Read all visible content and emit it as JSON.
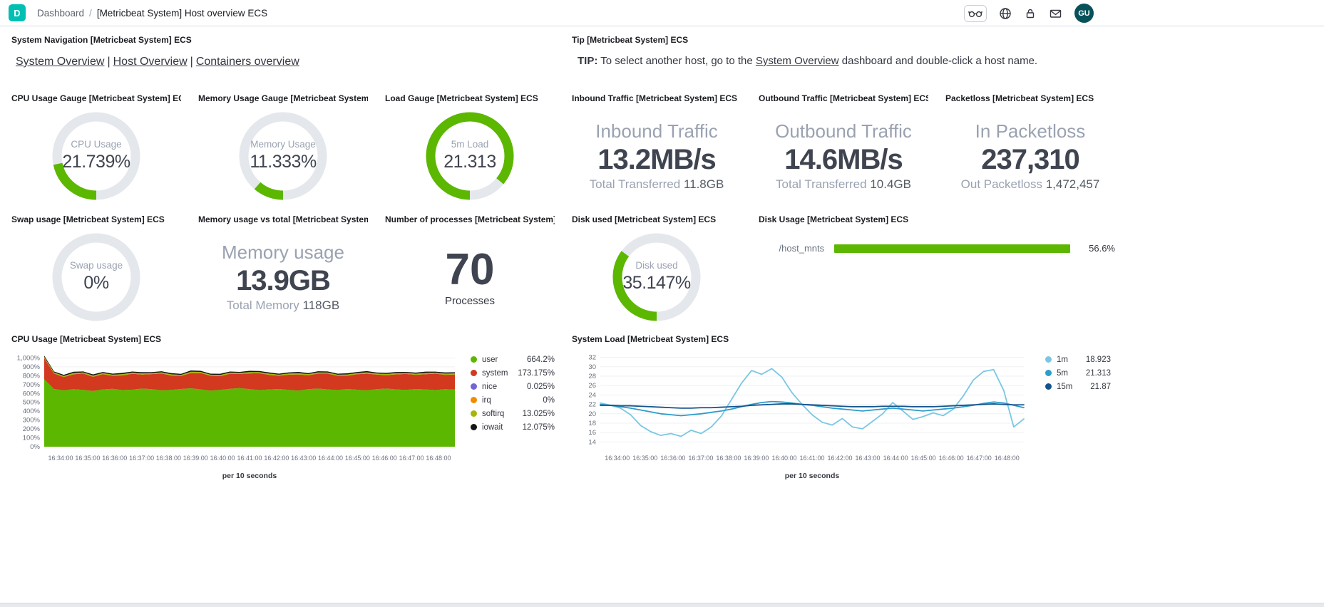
{
  "header": {
    "logo_letter": "D",
    "breadcrumbs": {
      "root": "Dashboard",
      "separator": "/",
      "current": "[Metricbeat System] Host overview ECS"
    },
    "avatar_initials": "GU"
  },
  "panels": {
    "system_navigation": {
      "title": "System Navigation [Metricbeat System] ECS",
      "separator": "|",
      "links": [
        "System Overview",
        "Host Overview",
        "Containers overview"
      ]
    },
    "tip": {
      "title": "Tip [Metricbeat System] ECS",
      "label": "TIP:",
      "text_before": " To select another host, go to the ",
      "link": "System Overview",
      "text_after": " dashboard and double-click a host name."
    },
    "cpu_gauge": {
      "title": "CPU Usage Gauge [Metricbeat System] ECS",
      "label": "CPU Usage",
      "value": "21.739%",
      "percent": 21.739,
      "color": "#5CB700"
    },
    "memory_gauge": {
      "title": "Memory Usage Gauge [Metricbeat System] ...",
      "label": "Memory Usage",
      "value": "11.333%",
      "percent": 11.333,
      "color": "#5CB700"
    },
    "load_gauge": {
      "title": "Load Gauge [Metricbeat System] ECS",
      "label": "5m Load",
      "value": "21.313",
      "percent": 86,
      "color": "#5CB700"
    },
    "inbound_traffic": {
      "title": "Inbound Traffic [Metricbeat System] ECS",
      "label": "Inbound Traffic",
      "value": "13.2MB/s",
      "sub_label": "Total Transferred ",
      "sub_value": "11.8GB"
    },
    "outbound_traffic": {
      "title": "Outbound Traffic [Metricbeat System] ECS",
      "label": "Outbound Traffic",
      "value": "14.6MB/s",
      "sub_label": "Total Transferred ",
      "sub_value": "10.4GB"
    },
    "packetloss": {
      "title": "Packetloss [Metricbeat System] ECS",
      "label": "In Packetloss",
      "value": "237,310",
      "sub_label": "Out Packetloss ",
      "sub_value": "1,472,457"
    },
    "swap_gauge": {
      "title": "Swap usage [Metricbeat System] ECS",
      "label": "Swap usage",
      "value": "0%",
      "percent": 0,
      "color": "#5CB700"
    },
    "memory_vs_total": {
      "title": "Memory usage vs total [Metricbeat System] ...",
      "label": "Memory usage",
      "value": "13.9GB",
      "sub_label": "Total Memory ",
      "sub_value": "118GB"
    },
    "processes": {
      "title": "Number of processes [Metricbeat System] E...",
      "value": "70",
      "label": "Processes"
    },
    "disk_used_gauge": {
      "title": "Disk used [Metricbeat System] ECS",
      "label": "Disk used",
      "value": "35.147%",
      "percent": 35.147,
      "color": "#5CB700"
    },
    "disk_usage_bar": {
      "title": "Disk Usage [Metricbeat System] ECS",
      "item_label": "/host_mnts",
      "value": "56.6%",
      "percent": 100,
      "color": "#5CB700"
    },
    "cpu_chart": {
      "title": "CPU Usage [Metricbeat System] ECS"
    },
    "load_chart": {
      "title": "System Load [Metricbeat System] ECS"
    }
  },
  "chart_data": [
    {
      "id": "cpu_usage",
      "type": "area",
      "stacked": true,
      "title": "CPU Usage [Metricbeat System] ECS",
      "x_caption": "per 10 seconds",
      "ylim": [
        0,
        1060
      ],
      "y_tick_values": [
        0,
        100,
        200,
        300,
        400,
        500,
        600,
        700,
        800,
        900,
        1000
      ],
      "y_ticks": [
        "0%",
        "100%",
        "200%",
        "300%",
        "400%",
        "500%",
        "600%",
        "700%",
        "800%",
        "900%",
        "1,000%"
      ],
      "x_labels": [
        "16:34:00",
        "16:35:00",
        "16:36:00",
        "16:37:00",
        "16:38:00",
        "16:39:00",
        "16:40:00",
        "16:41:00",
        "16:42:00",
        "16:43:00",
        "16:44:00",
        "16:45:00",
        "16:46:00",
        "16:47:00",
        "16:48:00"
      ],
      "legend_position": "right",
      "grid": true,
      "series": [
        {
          "name": "user",
          "color": "#5CB700",
          "legend_value": "664.2%",
          "values": [
            760,
            650,
            635,
            648,
            640,
            628,
            645,
            652,
            638,
            642,
            655,
            648,
            635,
            640,
            650,
            658,
            645,
            632,
            640,
            652,
            660,
            648,
            638,
            645,
            650,
            640,
            632,
            648,
            655,
            645,
            638,
            650,
            642,
            635,
            648,
            655,
            645,
            640,
            650,
            645,
            638,
            648,
            644
          ]
        },
        {
          "name": "system",
          "color": "#D2391F",
          "legend_value": "173.175%",
          "values": [
            240,
            175,
            150,
            168,
            185,
            160,
            172,
            148,
            165,
            180,
            158,
            170,
            190,
            162,
            148,
            172,
            185,
            168,
            155,
            170,
            160,
            178,
            190,
            165,
            150,
            172,
            182,
            158,
            168,
            178,
            162,
            150,
            175,
            188,
            165,
            152,
            170,
            180,
            160,
            172,
            185,
            162,
            170
          ]
        },
        {
          "name": "nice",
          "color": "#7266D6",
          "legend_value": "0.025%",
          "values": []
        },
        {
          "name": "irq",
          "color": "#F08C00",
          "legend_value": "0%",
          "values": []
        },
        {
          "name": "softirq",
          "color": "#A9B408",
          "legend_value": "13.025%",
          "values": [
            14,
            12,
            13,
            15,
            12,
            14,
            13,
            12,
            15,
            13,
            14,
            12,
            13,
            14,
            12,
            15,
            13,
            12,
            14,
            13,
            12,
            15,
            13,
            14,
            12,
            13,
            15,
            12,
            14,
            13,
            12,
            14,
            13,
            15,
            12,
            13,
            14,
            12,
            13,
            15,
            12,
            14,
            13
          ]
        },
        {
          "name": "iowait",
          "color": "#151515",
          "legend_value": "12.075%",
          "values": [
            13,
            11,
            12,
            14,
            11,
            13,
            12,
            11,
            14,
            12,
            13,
            11,
            12,
            13,
            11,
            14,
            12,
            11,
            13,
            12,
            11,
            14,
            12,
            13,
            11,
            12,
            14,
            11,
            13,
            12,
            11,
            13,
            12,
            14,
            11,
            12,
            13,
            11,
            12,
            14,
            11,
            13,
            12
          ]
        }
      ]
    },
    {
      "id": "system_load",
      "type": "line",
      "stacked": false,
      "title": "System Load [Metricbeat System] ECS",
      "x_caption": "per 10 seconds",
      "ylim": [
        13,
        33
      ],
      "y_tick_values": [
        14,
        16,
        18,
        20,
        22,
        24,
        26,
        28,
        30,
        32
      ],
      "y_ticks": [
        "14",
        "16",
        "18",
        "20",
        "22",
        "24",
        "26",
        "28",
        "30",
        "32"
      ],
      "x_labels": [
        "16:34:00",
        "16:35:00",
        "16:36:00",
        "16:37:00",
        "16:38:00",
        "16:39:00",
        "16:40:00",
        "16:41:00",
        "16:42:00",
        "16:43:00",
        "16:44:00",
        "16:45:00",
        "16:46:00",
        "16:47:00",
        "16:48:00"
      ],
      "legend_position": "right",
      "grid": true,
      "series": [
        {
          "name": "1m",
          "color": "#79C7E3",
          "legend_value": "18.923",
          "values": [
            22.3,
            21.8,
            21.2,
            19.8,
            17.5,
            16.2,
            15.4,
            15.8,
            15.2,
            16.5,
            15.8,
            17.2,
            19.5,
            23.0,
            26.5,
            29.2,
            28.4,
            29.6,
            27.8,
            24.5,
            22.0,
            19.8,
            18.2,
            17.6,
            19.0,
            17.2,
            16.8,
            18.4,
            20.0,
            22.4,
            20.6,
            18.8,
            19.4,
            20.2,
            19.6,
            21.0,
            23.8,
            27.2,
            29.0,
            29.4,
            25.0,
            17.2,
            18.9
          ]
        },
        {
          "name": "5m",
          "color": "#2D9CC9",
          "legend_value": "21.313",
          "values": [
            22.0,
            21.8,
            21.5,
            21.2,
            20.8,
            20.4,
            20.0,
            19.8,
            19.6,
            19.8,
            20.0,
            20.3,
            20.6,
            21.0,
            21.5,
            22.0,
            22.4,
            22.6,
            22.5,
            22.3,
            22.0,
            21.8,
            21.5,
            21.2,
            21.0,
            20.8,
            20.6,
            20.8,
            21.0,
            21.2,
            21.0,
            20.8,
            20.6,
            20.8,
            21.0,
            21.2,
            21.5,
            21.8,
            22.2,
            22.5,
            22.3,
            21.8,
            21.3
          ]
        },
        {
          "name": "15m",
          "color": "#14548C",
          "legend_value": "21.87",
          "values": [
            21.8,
            21.8,
            21.7,
            21.7,
            21.6,
            21.5,
            21.4,
            21.3,
            21.2,
            21.2,
            21.3,
            21.3,
            21.4,
            21.5,
            21.6,
            21.8,
            21.9,
            22.0,
            22.1,
            22.1,
            22.0,
            21.9,
            21.8,
            21.7,
            21.6,
            21.5,
            21.5,
            21.5,
            21.6,
            21.6,
            21.6,
            21.5,
            21.5,
            21.5,
            21.6,
            21.7,
            21.8,
            21.9,
            22.0,
            22.1,
            22.0,
            21.9,
            21.9
          ]
        }
      ]
    }
  ]
}
